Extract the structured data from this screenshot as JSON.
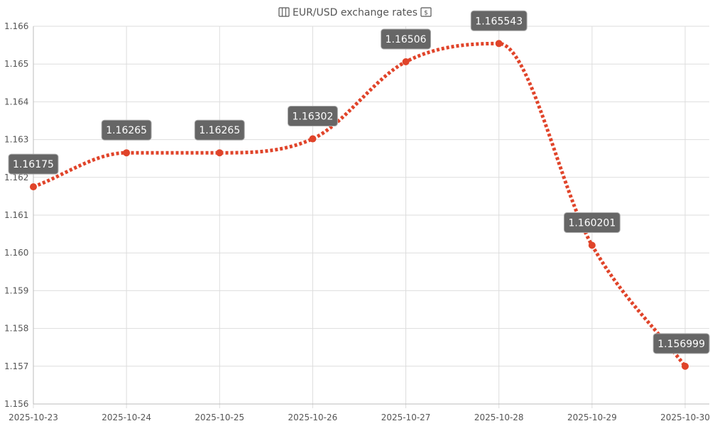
{
  "colors": {
    "line": "#e0442a",
    "label_bg": "#666666",
    "label_text": "#ffffff",
    "grid": "#dddddd",
    "text": "#555555"
  },
  "chart_data": {
    "type": "line",
    "title": "EUR/USD exchange rates",
    "title_icons": [
      "map-icon",
      "banknote-icon"
    ],
    "x": [
      "2025-10-23",
      "2025-10-24",
      "2025-10-25",
      "2025-10-26",
      "2025-10-27",
      "2025-10-28",
      "2025-10-29",
      "2025-10-30"
    ],
    "series": [
      {
        "values": [
          1.16175,
          1.16265,
          1.16265,
          1.16302,
          1.16506,
          1.165543,
          1.160201,
          1.156999
        ],
        "labels": [
          "1.16175",
          "1.16265",
          "1.16265",
          "1.16302",
          "1.16506",
          "1.165543",
          "1.160201",
          "1.156999"
        ]
      }
    ],
    "ylim": [
      1.156,
      1.166
    ],
    "yticks": [
      "1.156",
      "1.157",
      "1.158",
      "1.159",
      "1.160",
      "1.161",
      "1.162",
      "1.163",
      "1.164",
      "1.165",
      "1.166"
    ],
    "line_style": "dotted",
    "smooth": true,
    "grid": true,
    "xlabel": "",
    "ylabel": ""
  }
}
